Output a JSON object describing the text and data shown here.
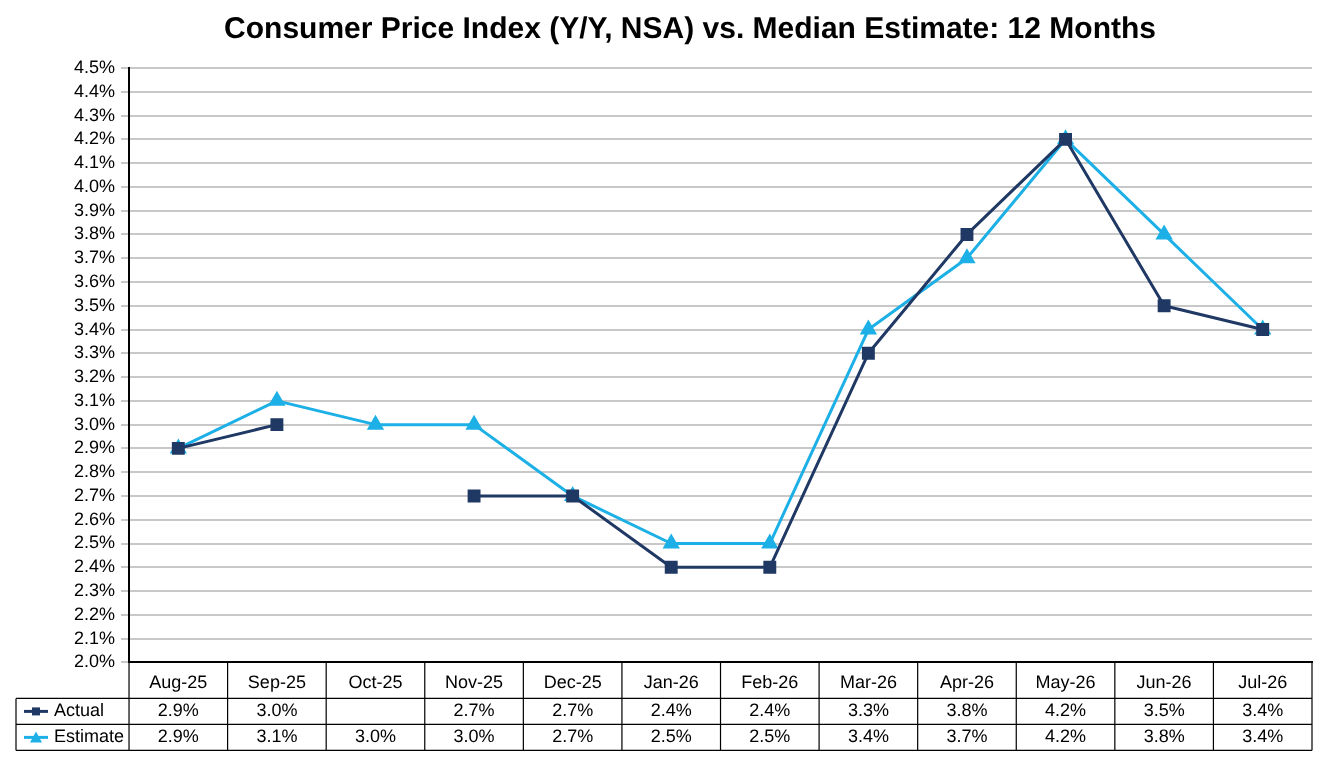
{
  "chart_data": {
    "type": "line",
    "title": "Consumer Price Index (Y/Y, NSA) vs. Median Estimate: 12 Months",
    "categories": [
      "Aug-25",
      "Sep-25",
      "Oct-25",
      "Nov-25",
      "Dec-25",
      "Jan-26",
      "Feb-26",
      "Mar-26",
      "Apr-26",
      "May-26",
      "Jun-26",
      "Jul-26"
    ],
    "series": [
      {
        "name": "Actual",
        "color": "#1f3864",
        "marker": "square",
        "values": [
          2.9,
          3.0,
          null,
          2.7,
          2.7,
          2.4,
          2.4,
          3.3,
          3.8,
          4.2,
          3.5,
          3.4
        ],
        "value_labels": [
          "2.9%",
          "3.0%",
          null,
          "2.7%",
          "2.7%",
          "2.4%",
          "2.4%",
          "3.3%",
          "3.8%",
          "4.2%",
          "3.5%",
          "3.4%"
        ]
      },
      {
        "name": "Estimate",
        "color": "#1cb0e6",
        "marker": "triangle",
        "values": [
          2.9,
          3.1,
          3.0,
          3.0,
          2.7,
          2.5,
          2.5,
          3.4,
          3.7,
          4.2,
          3.8,
          3.4
        ],
        "value_labels": [
          "2.9%",
          "3.1%",
          "3.0%",
          "3.0%",
          "2.7%",
          "2.5%",
          "2.5%",
          "3.4%",
          "3.7%",
          "4.2%",
          "3.8%",
          "3.4%"
        ]
      }
    ],
    "ylim": [
      2.0,
      4.5
    ],
    "yticks": [
      {
        "value": 2.0,
        "label": "2.0%"
      },
      {
        "value": 2.1,
        "label": "2.1%"
      },
      {
        "value": 2.2,
        "label": "2.2%"
      },
      {
        "value": 2.3,
        "label": "2.3%"
      },
      {
        "value": 2.4,
        "label": "2.4%"
      },
      {
        "value": 2.5,
        "label": "2.5%"
      },
      {
        "value": 2.6,
        "label": "2.6%"
      },
      {
        "value": 2.7,
        "label": "2.7%"
      },
      {
        "value": 2.8,
        "label": "2.8%"
      },
      {
        "value": 2.9,
        "label": "2.9%"
      },
      {
        "value": 3.0,
        "label": "3.0%"
      },
      {
        "value": 3.1,
        "label": "3.1%"
      },
      {
        "value": 3.2,
        "label": "3.2%"
      },
      {
        "value": 3.3,
        "label": "3.3%"
      },
      {
        "value": 3.4,
        "label": "3.4%"
      },
      {
        "value": 3.5,
        "label": "3.5%"
      },
      {
        "value": 3.6,
        "label": "3.6%"
      },
      {
        "value": 3.7,
        "label": "3.7%"
      },
      {
        "value": 3.8,
        "label": "3.8%"
      },
      {
        "value": 3.9,
        "label": "3.9%"
      },
      {
        "value": 4.0,
        "label": "4.0%"
      },
      {
        "value": 4.1,
        "label": "4.1%"
      },
      {
        "value": 4.2,
        "label": "4.2%"
      },
      {
        "value": 4.3,
        "label": "4.3%"
      },
      {
        "value": 4.4,
        "label": "4.4%"
      },
      {
        "value": 4.5,
        "label": "4.5%"
      }
    ],
    "grid": "y",
    "legend": "bottom left",
    "line_style": "solid"
  }
}
